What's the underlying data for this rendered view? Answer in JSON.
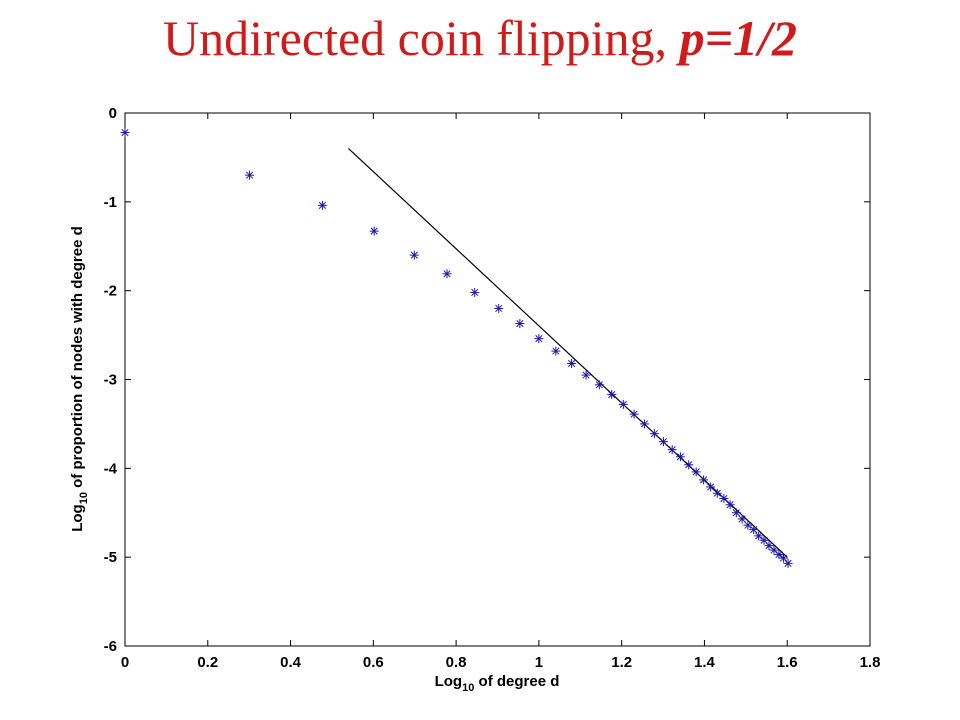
{
  "slide": {
    "title_main": "Undirected coin flipping, ",
    "title_emph": "p=1/2"
  },
  "chart_data": {
    "type": "scatter",
    "xlabel": {
      "base": "Log",
      "sub": "10",
      "rest": " of degree d"
    },
    "ylabel": {
      "base": "Log",
      "sub": "10",
      "rest": " of proportion of nodes with degree d"
    },
    "xlim": [
      0,
      1.8
    ],
    "ylim": [
      -6,
      0
    ],
    "xticks": [
      {
        "value": 0,
        "label": "0"
      },
      {
        "value": 0.2,
        "label": "0.2"
      },
      {
        "value": 0.4,
        "label": "0.4"
      },
      {
        "value": 0.6,
        "label": "0.6"
      },
      {
        "value": 0.8,
        "label": "0.8"
      },
      {
        "value": 1,
        "label": "1"
      },
      {
        "value": 1.2,
        "label": "1.2"
      },
      {
        "value": 1.4,
        "label": "1.4"
      },
      {
        "value": 1.6,
        "label": "1.6"
      },
      {
        "value": 1.8,
        "label": "1.8"
      }
    ],
    "yticks": [
      {
        "value": 0,
        "label": "0"
      },
      {
        "value": -1,
        "label": "-1"
      },
      {
        "value": -2,
        "label": "-2"
      },
      {
        "value": -3,
        "label": "-3"
      },
      {
        "value": -4,
        "label": "-4"
      },
      {
        "value": -5,
        "label": "-5"
      },
      {
        "value": -6,
        "label": "-6"
      }
    ],
    "grid": false,
    "series": [
      {
        "marker": "asterisk",
        "color": "#1a1aa8",
        "x": [
          0,
          0.301,
          0.477,
          0.602,
          0.699,
          0.778,
          0.845,
          0.903,
          0.954,
          1.0,
          1.041,
          1.079,
          1.114,
          1.146,
          1.176,
          1.204,
          1.23,
          1.255,
          1.279,
          1.301,
          1.322,
          1.342,
          1.362,
          1.38,
          1.398,
          1.415,
          1.431,
          1.447,
          1.462,
          1.477,
          1.491,
          1.505,
          1.519,
          1.531,
          1.544,
          1.556,
          1.568,
          1.58,
          1.591,
          1.602
        ],
        "y": [
          -0.22,
          -0.7,
          -1.04,
          -1.33,
          -1.6,
          -1.81,
          -2.02,
          -2.2,
          -2.37,
          -2.54,
          -2.68,
          -2.82,
          -2.95,
          -3.06,
          -3.17,
          -3.28,
          -3.39,
          -3.5,
          -3.61,
          -3.7,
          -3.79,
          -3.87,
          -3.96,
          -4.04,
          -4.13,
          -4.21,
          -4.28,
          -4.34,
          -4.41,
          -4.5,
          -4.57,
          -4.64,
          -4.69,
          -4.76,
          -4.81,
          -4.87,
          -4.92,
          -4.97,
          -5.01,
          -5.07
        ]
      }
    ],
    "fit_line": {
      "color": "#000000",
      "x": [
        0.54,
        1.6
      ],
      "y": [
        -0.4,
        -5.0
      ]
    }
  }
}
